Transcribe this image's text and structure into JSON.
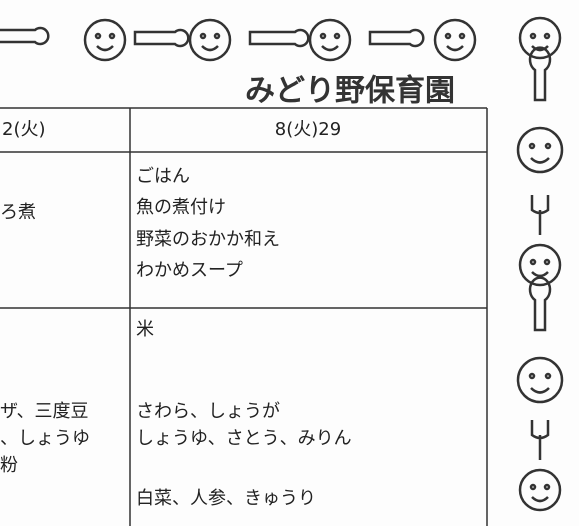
{
  "header": {
    "title": "みどり野保育園"
  },
  "table": {
    "columns": [
      "2(火)",
      "8(火)29"
    ],
    "rows": [
      [
        [
          "ろ煮"
        ],
        [
          "ごはん",
          "魚の煮付け",
          "野菜のおかか和え",
          "わかめスープ"
        ]
      ],
      [
        [
          "ザ、三度豆",
          "、しょうゆ",
          "粉"
        ],
        [
          "米",
          "さわら、しょうが",
          "しょうゆ、さとう、みりん",
          "白菜、人参、きゅうり"
        ]
      ]
    ]
  }
}
